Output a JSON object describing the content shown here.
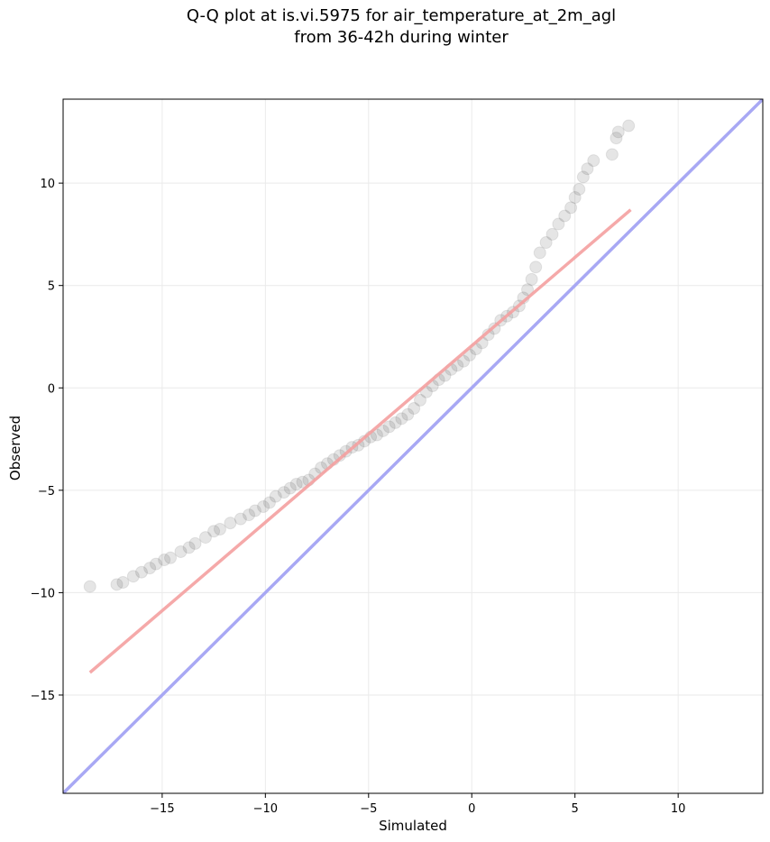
{
  "chart_data": {
    "type": "scatter",
    "title": "Q-Q plot at is.vi.5975 for air_temperature_at_2m_agl",
    "subtitle": "from 36-42h during winter",
    "xlabel": "Simulated",
    "ylabel": "Observed",
    "xlim": [
      -19.8,
      14.1
    ],
    "ylim": [
      -19.8,
      14.1
    ],
    "x_ticks": [
      -15,
      -10,
      -5,
      0,
      5,
      10
    ],
    "y_ticks": [
      -15,
      -10,
      -5,
      0,
      5,
      10
    ],
    "x_tick_labels": [
      "−15",
      "−10",
      "−5",
      "0",
      "5",
      "10"
    ],
    "y_tick_labels": [
      "−15",
      "−10",
      "−5",
      "0",
      "5",
      "10"
    ],
    "grid": true,
    "colors": {
      "points": "#333333",
      "fit_line": "#f4a0a0",
      "identity_line": "#a8a8f4",
      "grid": "#eaeaea"
    },
    "series": [
      {
        "kind": "points",
        "x": [
          -18.5,
          -17.2,
          -16.9,
          -16.4,
          -16.0,
          -15.6,
          -15.3,
          -14.9,
          -14.6,
          -14.1,
          -13.7,
          -13.4,
          -12.9,
          -12.5,
          -12.2,
          -11.7,
          -11.2,
          -10.8,
          -10.5,
          -10.1,
          -9.8,
          -9.5,
          -9.1,
          -8.8,
          -8.5,
          -8.2,
          -7.9,
          -7.6,
          -7.3,
          -7.0,
          -6.7,
          -6.4,
          -6.1,
          -5.8,
          -5.5,
          -5.2,
          -4.9,
          -4.6,
          -4.3,
          -4.0,
          -3.7,
          -3.4,
          -3.1,
          -2.8,
          -2.5,
          -2.2,
          -1.9,
          -1.6,
          -1.3,
          -1.0,
          -0.7,
          -0.4,
          -0.1,
          0.2,
          0.5,
          0.8,
          1.1,
          1.4,
          1.7,
          2.0,
          2.3,
          2.5,
          2.7,
          2.9,
          3.1,
          3.3,
          3.6,
          3.9,
          4.2,
          4.5,
          4.8,
          5.0,
          5.2,
          5.4,
          5.6,
          5.9,
          6.8,
          7.0,
          7.1,
          7.6
        ],
        "y": [
          -9.7,
          -9.6,
          -9.5,
          -9.2,
          -9.0,
          -8.8,
          -8.6,
          -8.4,
          -8.3,
          -8.0,
          -7.8,
          -7.6,
          -7.3,
          -7.0,
          -6.9,
          -6.6,
          -6.4,
          -6.2,
          -6.0,
          -5.8,
          -5.6,
          -5.3,
          -5.1,
          -4.9,
          -4.7,
          -4.6,
          -4.5,
          -4.2,
          -3.9,
          -3.7,
          -3.5,
          -3.3,
          -3.1,
          -2.9,
          -2.8,
          -2.6,
          -2.4,
          -2.3,
          -2.1,
          -1.9,
          -1.7,
          -1.5,
          -1.3,
          -1.0,
          -0.6,
          -0.2,
          0.1,
          0.4,
          0.6,
          0.9,
          1.1,
          1.3,
          1.6,
          1.9,
          2.2,
          2.6,
          2.9,
          3.3,
          3.5,
          3.7,
          4.0,
          4.4,
          4.8,
          5.3,
          5.9,
          6.6,
          7.1,
          7.5,
          8.0,
          8.4,
          8.8,
          9.3,
          9.7,
          10.3,
          10.7,
          11.1,
          11.4,
          12.2,
          12.5,
          12.8
        ]
      },
      {
        "kind": "fit-line",
        "x": [
          -18.5,
          7.7
        ],
        "y": [
          -13.9,
          8.7
        ]
      },
      {
        "kind": "identity-line",
        "x": [
          -19.8,
          14.1
        ],
        "y": [
          -19.8,
          14.1
        ]
      }
    ]
  }
}
